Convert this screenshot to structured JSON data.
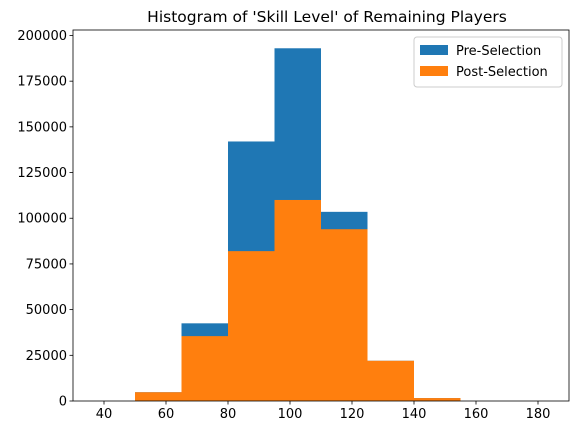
{
  "chart_data": {
    "type": "bar",
    "title": "Histogram of 'Skill Level' of Remaining Players",
    "xlabel": "",
    "ylabel": "",
    "xlim": [
      30,
      190
    ],
    "ylim": [
      0,
      203000
    ],
    "xticks": [
      40,
      60,
      80,
      100,
      120,
      140,
      160,
      180
    ],
    "yticks": [
      0,
      25000,
      50000,
      75000,
      100000,
      125000,
      150000,
      175000,
      200000
    ],
    "bin_edges": [
      35,
      50,
      65,
      80,
      95,
      110,
      125,
      140,
      155,
      170,
      185
    ],
    "series": [
      {
        "name": "Pre-Selection",
        "color": "#1f77b4",
        "values": [
          0,
          4800,
          42500,
          142000,
          193000,
          103500,
          22000,
          1600,
          0,
          0
        ]
      },
      {
        "name": "Post-Selection",
        "color": "#ff7f0e",
        "values": [
          0,
          4800,
          35500,
          82000,
          110000,
          94000,
          22000,
          1600,
          0,
          0
        ]
      }
    ],
    "legend_position": "top-right",
    "grid": false
  }
}
